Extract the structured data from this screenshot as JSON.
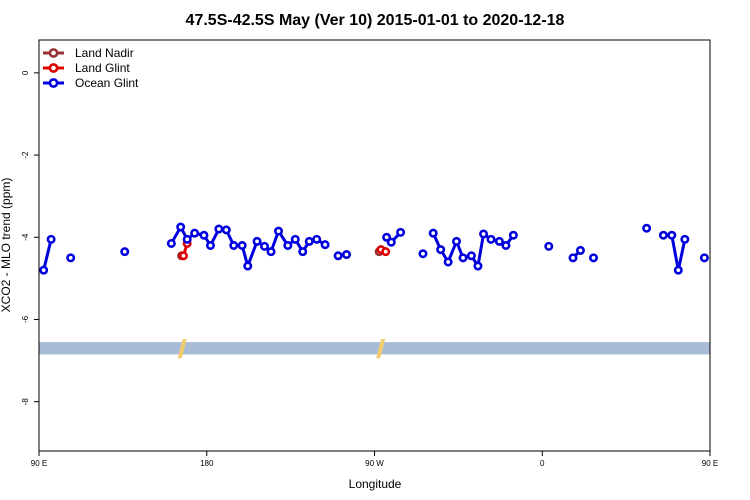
{
  "chart_data": {
    "type": "line",
    "title": "47.5S-42.5S May (Ver 10)   2015-01-01 to 2020-12-18",
    "xlabel": "Longitude",
    "ylabel": "XCO2 - MLO trend (ppm)",
    "xlim": [
      90,
      450
    ],
    "ylim": [
      -9.2,
      0.8
    ],
    "x_ticks": [
      {
        "value": 90,
        "label": "90 E"
      },
      {
        "value": 180,
        "label": "180"
      },
      {
        "value": 270,
        "label": "90 W"
      },
      {
        "value": 360,
        "label": "0"
      },
      {
        "value": 450,
        "label": "90 E"
      },
      {
        "value": 540,
        "label": "180"
      }
    ],
    "y_ticks": [
      0,
      -2,
      -4,
      -6,
      -8
    ],
    "grid": false,
    "legend_position": "top-left",
    "series": [
      {
        "name": "Land Nadir",
        "color": "#993333",
        "segments": [
          [
            {
              "x": 166.5,
              "y": -4.45
            }
          ],
          [
            {
              "x": 272.5,
              "y": -4.35
            }
          ],
          [
            {
              "x": 484.5,
              "y": -4.45
            }
          ]
        ]
      },
      {
        "name": "Land Glint",
        "color": "#dd0000",
        "segments": [
          [
            {
              "x": 167.5,
              "y": -4.45
            },
            {
              "x": 169.5,
              "y": -4.15
            }
          ],
          [
            {
              "x": 273.5,
              "y": -4.3
            },
            {
              "x": 276.0,
              "y": -4.35
            }
          ],
          [
            {
              "x": 485.5,
              "y": -4.45
            },
            {
              "x": 487.5,
              "y": -4.15
            }
          ]
        ]
      },
      {
        "name": "Ocean Glint",
        "color": "#0000dd",
        "segments": [
          [
            {
              "x": 92.5,
              "y": -4.8
            },
            {
              "x": 96.5,
              "y": -4.05
            }
          ],
          [
            {
              "x": 107.0,
              "y": -4.5
            }
          ],
          [
            {
              "x": 136.0,
              "y": -4.35
            }
          ],
          [
            {
              "x": 161.0,
              "y": -4.15
            },
            {
              "x": 166.0,
              "y": -3.75
            },
            {
              "x": 169.5,
              "y": -4.05
            },
            {
              "x": 173.5,
              "y": -3.9
            },
            {
              "x": 178.5,
              "y": -3.95
            },
            {
              "x": 182.0,
              "y": -4.2
            },
            {
              "x": 186.5,
              "y": -3.8
            },
            {
              "x": 190.5,
              "y": -3.82
            },
            {
              "x": 194.5,
              "y": -4.2
            },
            {
              "x": 199.0,
              "y": -4.2
            },
            {
              "x": 202.0,
              "y": -4.7
            },
            {
              "x": 207.0,
              "y": -4.1
            },
            {
              "x": 211.0,
              "y": -4.22
            },
            {
              "x": 214.5,
              "y": -4.35
            },
            {
              "x": 218.5,
              "y": -3.85
            },
            {
              "x": 223.5,
              "y": -4.2
            },
            {
              "x": 227.5,
              "y": -4.05
            },
            {
              "x": 231.5,
              "y": -4.35
            },
            {
              "x": 235.0,
              "y": -4.1
            },
            {
              "x": 239.0,
              "y": -4.05
            },
            {
              "x": 243.5,
              "y": -4.18
            }
          ],
          [
            {
              "x": 250.5,
              "y": -4.45
            },
            {
              "x": 255.0,
              "y": -4.42
            }
          ],
          [
            {
              "x": 276.5,
              "y": -4.0
            },
            {
              "x": 279.0,
              "y": -4.12
            },
            {
              "x": 284.0,
              "y": -3.88
            }
          ],
          [
            {
              "x": 296.0,
              "y": -4.4
            }
          ],
          [
            {
              "x": 301.5,
              "y": -3.9
            },
            {
              "x": 305.5,
              "y": -4.3
            },
            {
              "x": 309.5,
              "y": -4.6
            },
            {
              "x": 314.0,
              "y": -4.1
            },
            {
              "x": 317.5,
              "y": -4.5
            },
            {
              "x": 322.0,
              "y": -4.45
            },
            {
              "x": 325.5,
              "y": -4.7
            },
            {
              "x": 328.5,
              "y": -3.92
            },
            {
              "x": 332.5,
              "y": -4.05
            },
            {
              "x": 337.0,
              "y": -4.1
            },
            {
              "x": 340.5,
              "y": -4.2
            },
            {
              "x": 344.5,
              "y": -3.95
            }
          ],
          [
            {
              "x": 363.5,
              "y": -4.22
            }
          ],
          [
            {
              "x": 376.5,
              "y": -4.5
            },
            {
              "x": 380.5,
              "y": -4.32
            }
          ],
          [
            {
              "x": 387.5,
              "y": -4.5
            }
          ],
          [
            {
              "x": 416.0,
              "y": -3.78
            }
          ],
          [
            {
              "x": 425.0,
              "y": -3.95
            },
            {
              "x": 429.5,
              "y": -3.95
            },
            {
              "x": 433.0,
              "y": -4.8
            },
            {
              "x": 436.5,
              "y": -4.05
            }
          ],
          [
            {
              "x": 447.0,
              "y": -4.5
            }
          ],
          [
            {
              "x": 476.0,
              "y": -4.35
            }
          ],
          [
            {
              "x": 481.0,
              "y": -4.15
            },
            {
              "x": 484.5,
              "y": -3.75
            },
            {
              "x": 487.5,
              "y": -4.05
            },
            {
              "x": 491.5,
              "y": -3.9
            }
          ]
        ]
      }
    ],
    "land_band": {
      "y_range": [
        -6.55,
        -6.85
      ],
      "color": "#a8bcd8",
      "highlight_color": "#f2cc6a",
      "highlight_x": [
        166.0,
        272.5,
        484.5
      ]
    }
  }
}
